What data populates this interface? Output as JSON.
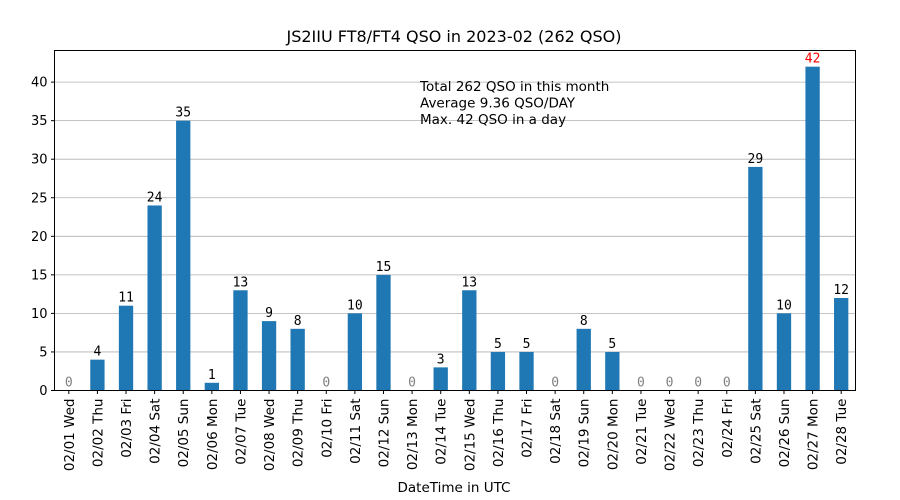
{
  "chart_data": {
    "type": "bar",
    "title": "JS2IIU FT8/FT4 QSO in 2023-02 (262 QSO)",
    "xlabel": "DateTime in UTC",
    "ylabel": "",
    "ylim": [
      0,
      44.1
    ],
    "yticks": [
      0,
      5,
      10,
      15,
      20,
      25,
      30,
      35,
      40
    ],
    "grid": "y",
    "bar_color": "#1f77b4",
    "zero_label_color": "#808080",
    "max_label_color": "#ff0000",
    "categories": [
      "02/01 Wed",
      "02/02 Thu",
      "02/03 Fri",
      "02/04 Sat",
      "02/05 Sun",
      "02/06 Mon",
      "02/07 Tue",
      "02/08 Wed",
      "02/09 Thu",
      "02/10 Fri",
      "02/11 Sat",
      "02/12 Sun",
      "02/13 Mon",
      "02/14 Tue",
      "02/15 Wed",
      "02/16 Thu",
      "02/17 Fri",
      "02/18 Sat",
      "02/19 Sun",
      "02/20 Mon",
      "02/21 Tue",
      "02/22 Wed",
      "02/23 Thu",
      "02/24 Fri",
      "02/25 Sat",
      "02/26 Sun",
      "02/27 Mon",
      "02/28 Tue"
    ],
    "values": [
      0,
      4,
      11,
      24,
      35,
      1,
      13,
      9,
      8,
      0,
      10,
      15,
      0,
      3,
      13,
      5,
      5,
      0,
      8,
      5,
      0,
      0,
      0,
      0,
      29,
      10,
      42,
      12
    ],
    "annotations": [
      "Total 262 QSO in this month",
      "Average 9.36 QSO/DAY",
      "Max. 42 QSO in a day"
    ]
  }
}
